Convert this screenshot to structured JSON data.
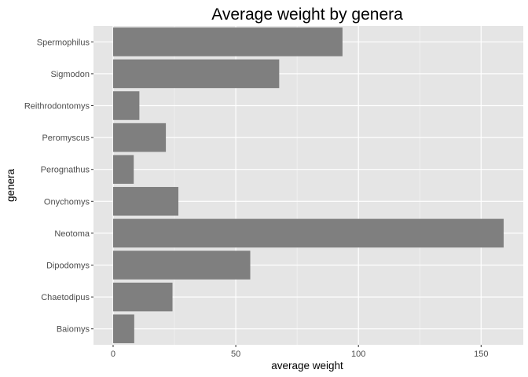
{
  "chart_data": {
    "type": "bar",
    "orientation": "horizontal",
    "title": "Average weight by genera",
    "xlabel": "average weight",
    "ylabel": "genera",
    "categories": [
      "Baiomys",
      "Chaetodipus",
      "Dipodomys",
      "Neotoma",
      "Onychomys",
      "Perognathus",
      "Peromyscus",
      "Reithrodontomys",
      "Sigmodon",
      "Spermophilus"
    ],
    "values": [
      8.6,
      24.2,
      55.9,
      159.2,
      26.6,
      8.4,
      21.5,
      10.7,
      67.7,
      93.5
    ],
    "xlim": [
      -8.0,
      167.2
    ],
    "xticks": [
      0,
      50,
      100,
      150
    ],
    "grid": true,
    "legend": "none",
    "colors": {
      "panel": "#e5e5e5",
      "grid_major": "#ffffff",
      "bar": "#7f7f7f"
    }
  }
}
